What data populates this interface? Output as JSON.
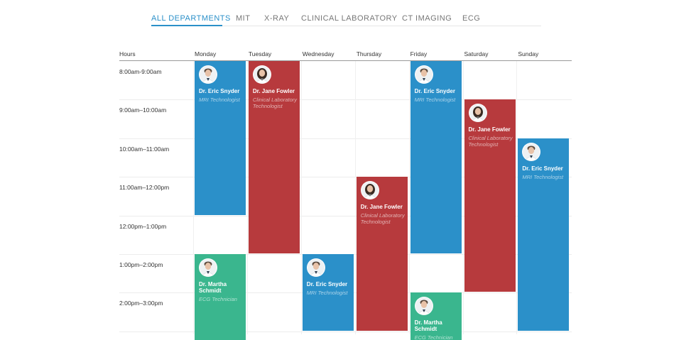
{
  "tabs": [
    "ALL DEPARTMENTS",
    "MIT",
    "X-RAY",
    "CLINICAL LABORATORY",
    "CT IMAGING",
    "ECG"
  ],
  "hours_header": "Hours",
  "hours": [
    "8:00am-9:00am",
    "9:00am–10:00am",
    "10:00am–11:00am",
    "11:00am–12:00pm",
    "12:00pm–1:00pm",
    "1:00pm–2:00pm",
    "2:00pm–3:00pm"
  ],
  "days": [
    {
      "name": "Monday",
      "events": [
        {
          "name": "Dr. Eric Snyder",
          "role": "MRI Technologist"
        },
        {
          "name": "Dr. Martha Schmidt",
          "role": "ECG Technician"
        }
      ]
    },
    {
      "name": "Tuesday",
      "events": [
        {
          "name": "Dr. Jane Fowler",
          "role": "Clinical Laboratory Technologist"
        }
      ]
    },
    {
      "name": "Wednesday",
      "events": [
        {
          "name": "Dr. Eric Snyder",
          "role": "MRI Technologist"
        }
      ]
    },
    {
      "name": "Thursday",
      "events": [
        {
          "name": "Dr. Jane Fowler",
          "role": "Clinical Laboratory Technologist"
        }
      ]
    },
    {
      "name": "Friday",
      "events": [
        {
          "name": "Dr. Eric Snyder",
          "role": "MRI Technologist"
        },
        {
          "name": "Dr. Martha Schmidt",
          "role": "ECG Technician"
        }
      ]
    },
    {
      "name": "Saturday",
      "events": [
        {
          "name": "Dr. Jane Fowler",
          "role": "Clinical Laboratory Technologist"
        }
      ]
    },
    {
      "name": "Sunday",
      "events": [
        {
          "name": "Dr. Eric Snyder",
          "role": "MRI Technologist"
        }
      ]
    }
  ]
}
